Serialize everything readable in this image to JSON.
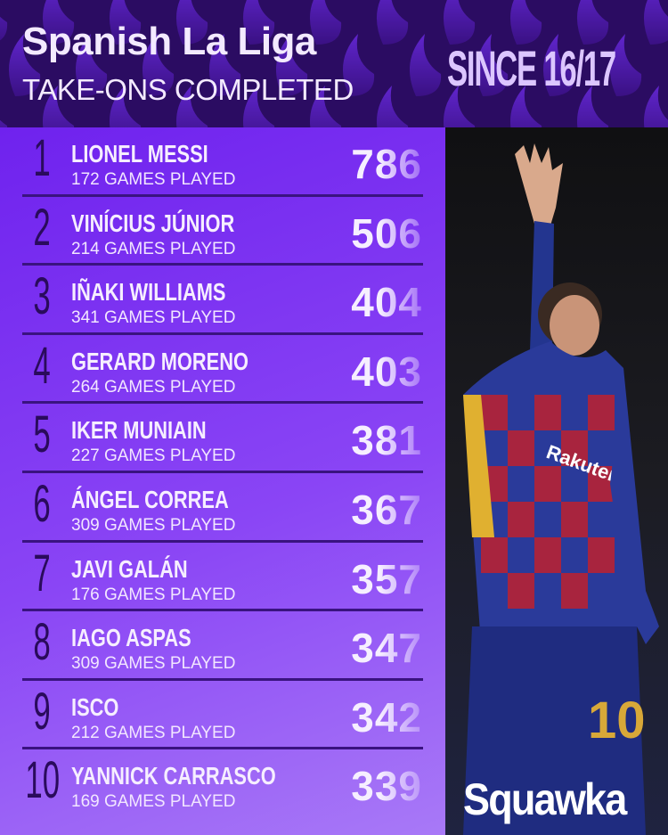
{
  "header": {
    "title": "Spanish La Liga",
    "subtitle": "TAKE-ONS COMPLETED",
    "period": "SINCE 16/17"
  },
  "colors": {
    "header_bg": "#2b0c62",
    "panel_accent": "#7a30f0",
    "rank_color": "#2a0b5c",
    "text": "#f6eeff"
  },
  "rows": [
    {
      "rank": "1",
      "name": "LIONEL MESSI",
      "games": "172 GAMES PLAYED",
      "value": "786"
    },
    {
      "rank": "2",
      "name": "VINÍCIUS JÚNIOR",
      "games": "214 GAMES PLAYED",
      "value": "506"
    },
    {
      "rank": "3",
      "name": "IÑAKI WILLIAMS",
      "games": "341 GAMES PLAYED",
      "value": "404"
    },
    {
      "rank": "4",
      "name": "GERARD MORENO",
      "games": "264 GAMES PLAYED",
      "value": "403"
    },
    {
      "rank": "5",
      "name": "IKER MUNIAIN",
      "games": "227 GAMES PLAYED",
      "value": "381"
    },
    {
      "rank": "6",
      "name": "ÁNGEL CORREA",
      "games": "309 GAMES PLAYED",
      "value": "367"
    },
    {
      "rank": "7",
      "name": "JAVI GALÁN",
      "games": "176 GAMES PLAYED",
      "value": "357"
    },
    {
      "rank": "8",
      "name": "IAGO ASPAS",
      "games": "309 GAMES PLAYED",
      "value": "347"
    },
    {
      "rank": "9",
      "name": "ISCO",
      "games": "212 GAMES PLAYED",
      "value": "342"
    },
    {
      "rank": "10",
      "name": "YANNICK CARRASCO",
      "games": "169 GAMES PLAYED",
      "value": "339"
    }
  ],
  "photo": {
    "shirt_number": "10",
    "sponsor": "Rakuten"
  },
  "brand": {
    "logo": "Squawka"
  }
}
